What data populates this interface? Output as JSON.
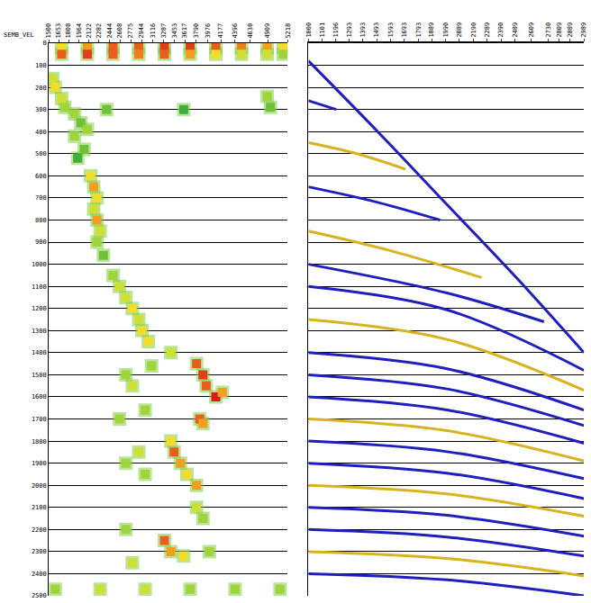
{
  "chart_data": [
    {
      "type": "scatter",
      "label": "SEMB_VEL",
      "xlim": [
        1500,
        5218
      ],
      "xticks": [
        1500,
        1653,
        1808,
        1964,
        2122,
        2282,
        2444,
        2608,
        2775,
        2944,
        3116,
        3287,
        3453,
        3617,
        3790,
        3976,
        4177,
        4396,
        4638,
        4909,
        5218
      ],
      "ylim": [
        2500,
        0
      ],
      "yticks": [
        0,
        100,
        200,
        300,
        400,
        500,
        600,
        700,
        800,
        900,
        1000,
        1100,
        1200,
        1300,
        1400,
        1500,
        1600,
        1700,
        1800,
        1900,
        2000,
        2100,
        2200,
        2300,
        2400,
        2500
      ],
      "grid": "y",
      "zlim": [
        0.3,
        1
      ],
      "x": [
        1700,
        2100,
        2500,
        2900,
        3300,
        3700,
        4100,
        4500,
        4900,
        5150,
        1700,
        2100,
        2500,
        2900,
        3300,
        3700,
        4100,
        4500,
        4900,
        5150,
        1560,
        1600,
        1700,
        1750,
        1900,
        2000,
        2100,
        4900,
        4950,
        3600,
        2400,
        1900,
        2050,
        1950,
        2150,
        2200,
        2250,
        2200,
        2250,
        2300,
        2250,
        2350,
        2500,
        2600,
        2700,
        2800,
        2900,
        2950,
        3050,
        3400,
        3800,
        3900,
        3950,
        4100,
        4200,
        2700,
        2800,
        3100,
        3850,
        3900,
        2600,
        3000,
        3400,
        3450,
        3550,
        3650,
        3800,
        2900,
        2700,
        3000,
        3800,
        3900,
        3300,
        3400,
        3600,
        2700,
        2800,
        4000,
        1600,
        2300,
        3000,
        3700,
        4400,
        5100
      ],
      "y": [
        20,
        20,
        20,
        20,
        20,
        20,
        20,
        20,
        20,
        20,
        50,
        50,
        50,
        50,
        50,
        50,
        50,
        50,
        50,
        50,
        160,
        200,
        250,
        290,
        320,
        360,
        390,
        240,
        290,
        300,
        300,
        420,
        480,
        520,
        600,
        650,
        700,
        750,
        800,
        850,
        900,
        960,
        1050,
        1100,
        1150,
        1200,
        1250,
        1300,
        1350,
        1400,
        1450,
        1500,
        1550,
        1600,
        1580,
        1500,
        1550,
        1460,
        1700,
        1720,
        1700,
        1660,
        1800,
        1850,
        1900,
        1950,
        2000,
        1850,
        1900,
        1950,
        2100,
        2150,
        2250,
        2300,
        2320,
        2200,
        2350,
        2300,
        2470,
        2470,
        2470,
        2470,
        2470,
        2470
      ],
      "values": [
        0.7,
        0.8,
        0.9,
        0.9,
        0.95,
        0.95,
        0.9,
        0.85,
        0.8,
        0.7,
        0.9,
        0.95,
        0.9,
        0.85,
        0.9,
        0.8,
        0.7,
        0.6,
        0.6,
        0.5,
        0.6,
        0.7,
        0.6,
        0.5,
        0.5,
        0.4,
        0.5,
        0.5,
        0.4,
        0.3,
        0.4,
        0.5,
        0.4,
        0.3,
        0.7,
        0.8,
        0.7,
        0.6,
        0.8,
        0.6,
        0.5,
        0.4,
        0.5,
        0.6,
        0.6,
        0.7,
        0.6,
        0.7,
        0.7,
        0.6,
        0.9,
        0.95,
        0.9,
        1.0,
        0.8,
        0.5,
        0.6,
        0.5,
        0.9,
        0.8,
        0.5,
        0.5,
        0.7,
        0.9,
        0.8,
        0.7,
        0.8,
        0.6,
        0.5,
        0.5,
        0.6,
        0.5,
        0.9,
        0.8,
        0.7,
        0.5,
        0.6,
        0.5,
        0.5,
        0.6,
        0.6,
        0.5,
        0.5,
        0.5
      ]
    },
    {
      "type": "line",
      "xlim": [
        1000,
        2989
      ],
      "xticks": [
        1000,
        1101,
        1196,
        1293,
        1393,
        1493,
        1593,
        1693,
        1793,
        1889,
        1990,
        2089,
        2190,
        2289,
        2390,
        2489,
        2609,
        2730,
        2809,
        2889,
        2989
      ],
      "ylim": [
        2500,
        0
      ],
      "yticks": [
        0,
        100,
        200,
        300,
        400,
        500,
        600,
        700,
        800,
        900,
        1000,
        1100,
        1200,
        1300,
        1400,
        1500,
        1600,
        1700,
        1800,
        1900,
        2000,
        2100,
        2200,
        2300,
        2400,
        2500
      ],
      "grid": "y",
      "tick_labels": "x",
      "series": [
        {
          "color": "#1f1fbf",
          "x": [
            1000,
            1500,
            2000,
            2500,
            2989
          ],
          "values": [
            80,
            400,
            730,
            1060,
            1400
          ]
        },
        {
          "color": "#1f1fbf",
          "x": [
            1000,
            1200
          ],
          "values": [
            260,
            300
          ]
        },
        {
          "color": "#d9b21f",
          "x": [
            1000,
            1350,
            1700
          ],
          "values": [
            450,
            500,
            570
          ]
        },
        {
          "color": "#1f1fbf",
          "x": [
            1000,
            1500,
            1950
          ],
          "values": [
            650,
            720,
            800
          ]
        },
        {
          "color": "#d9b21f",
          "x": [
            1000,
            1600,
            2250
          ],
          "values": [
            850,
            940,
            1060
          ]
        },
        {
          "color": "#1f1fbf",
          "x": [
            1000,
            2000,
            2700
          ],
          "values": [
            1000,
            1130,
            1260
          ]
        },
        {
          "color": "#1f1fbf",
          "x": [
            1000,
            2000,
            2989
          ],
          "values": [
            1100,
            1206,
            1480
          ]
        },
        {
          "color": "#d9b21f",
          "x": [
            1000,
            2000,
            2989
          ],
          "values": [
            1250,
            1340,
            1570
          ]
        },
        {
          "color": "#1f1fbf",
          "x": [
            1000,
            2000,
            2989
          ],
          "values": [
            1400,
            1473,
            1660
          ]
        },
        {
          "color": "#1f1fbf",
          "x": [
            1000,
            2000,
            2989
          ],
          "values": [
            1500,
            1564,
            1730
          ]
        },
        {
          "color": "#1f1fbf",
          "x": [
            1000,
            2000,
            2989
          ],
          "values": [
            1600,
            1659,
            1810
          ]
        },
        {
          "color": "#d9b21f",
          "x": [
            1000,
            2000,
            2989
          ],
          "values": [
            1700,
            1753,
            1890
          ]
        },
        {
          "color": "#1f1fbf",
          "x": [
            1000,
            2000,
            2989
          ],
          "values": [
            1800,
            1848,
            1970
          ]
        },
        {
          "color": "#1f1fbf",
          "x": [
            1000,
            2000,
            2989
          ],
          "values": [
            1900,
            1945,
            2060
          ]
        },
        {
          "color": "#d9b21f",
          "x": [
            1000,
            2000,
            2989
          ],
          "values": [
            2000,
            2039,
            2140
          ]
        },
        {
          "color": "#1f1fbf",
          "x": [
            1000,
            2000,
            2989
          ],
          "values": [
            2100,
            2136,
            2230
          ]
        },
        {
          "color": "#1f1fbf",
          "x": [
            1000,
            2000,
            2989
          ],
          "values": [
            2200,
            2234,
            2320
          ]
        },
        {
          "color": "#d9b21f",
          "x": [
            1000,
            2000,
            2989
          ],
          "values": [
            2300,
            2331,
            2410
          ]
        },
        {
          "color": "#1f1fbf",
          "x": [
            1000,
            2000,
            2989
          ],
          "values": [
            2400,
            2428,
            2500
          ]
        }
      ]
    }
  ]
}
